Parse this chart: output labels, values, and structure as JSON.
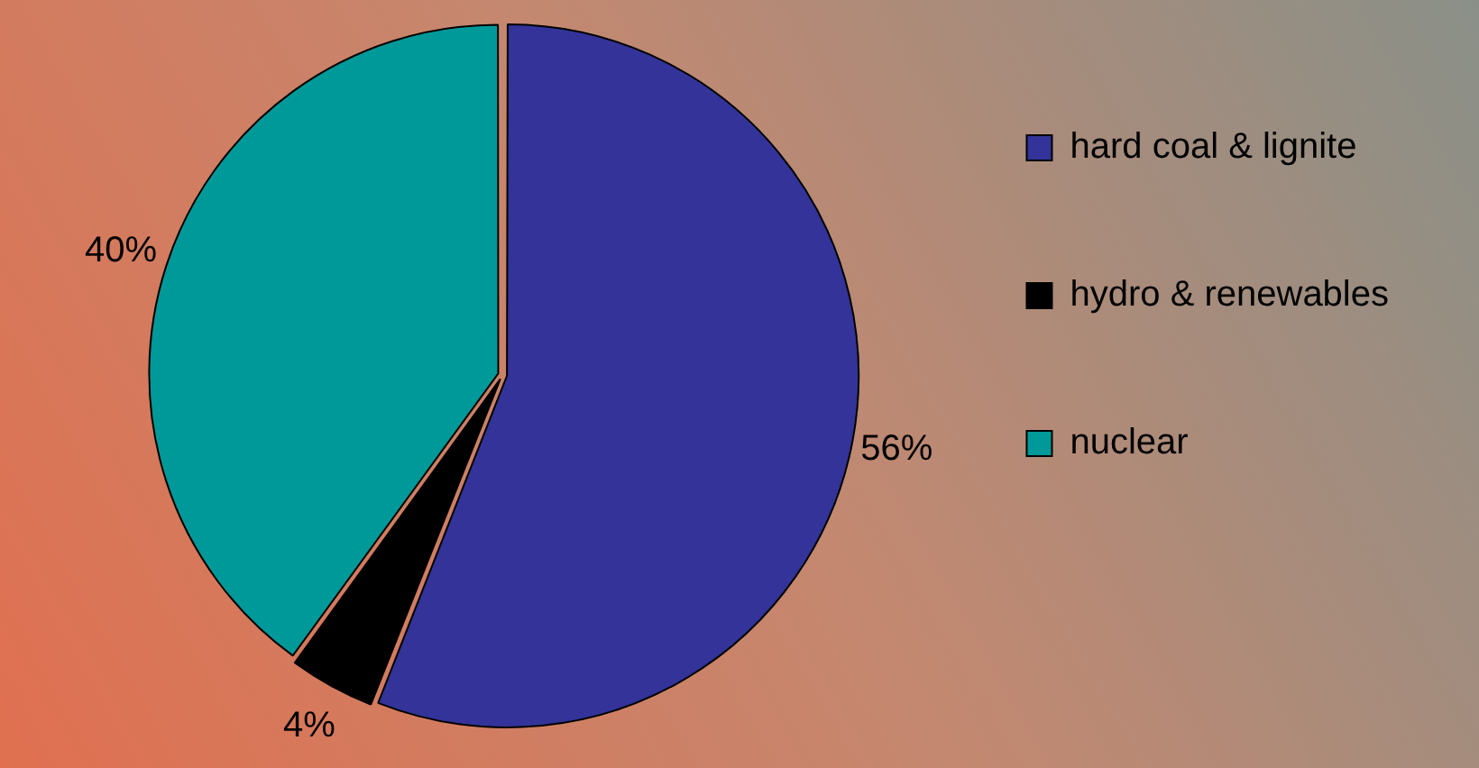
{
  "chart_data": {
    "type": "pie",
    "categories": [
      "hard coal & lignite",
      "hydro & renewables",
      "nuclear"
    ],
    "values": [
      56,
      4,
      40
    ],
    "colors": [
      "#333399",
      "#000000",
      "#009999"
    ],
    "value_labels": [
      "56%",
      "4%",
      "40%"
    ],
    "legend": "top right"
  }
}
